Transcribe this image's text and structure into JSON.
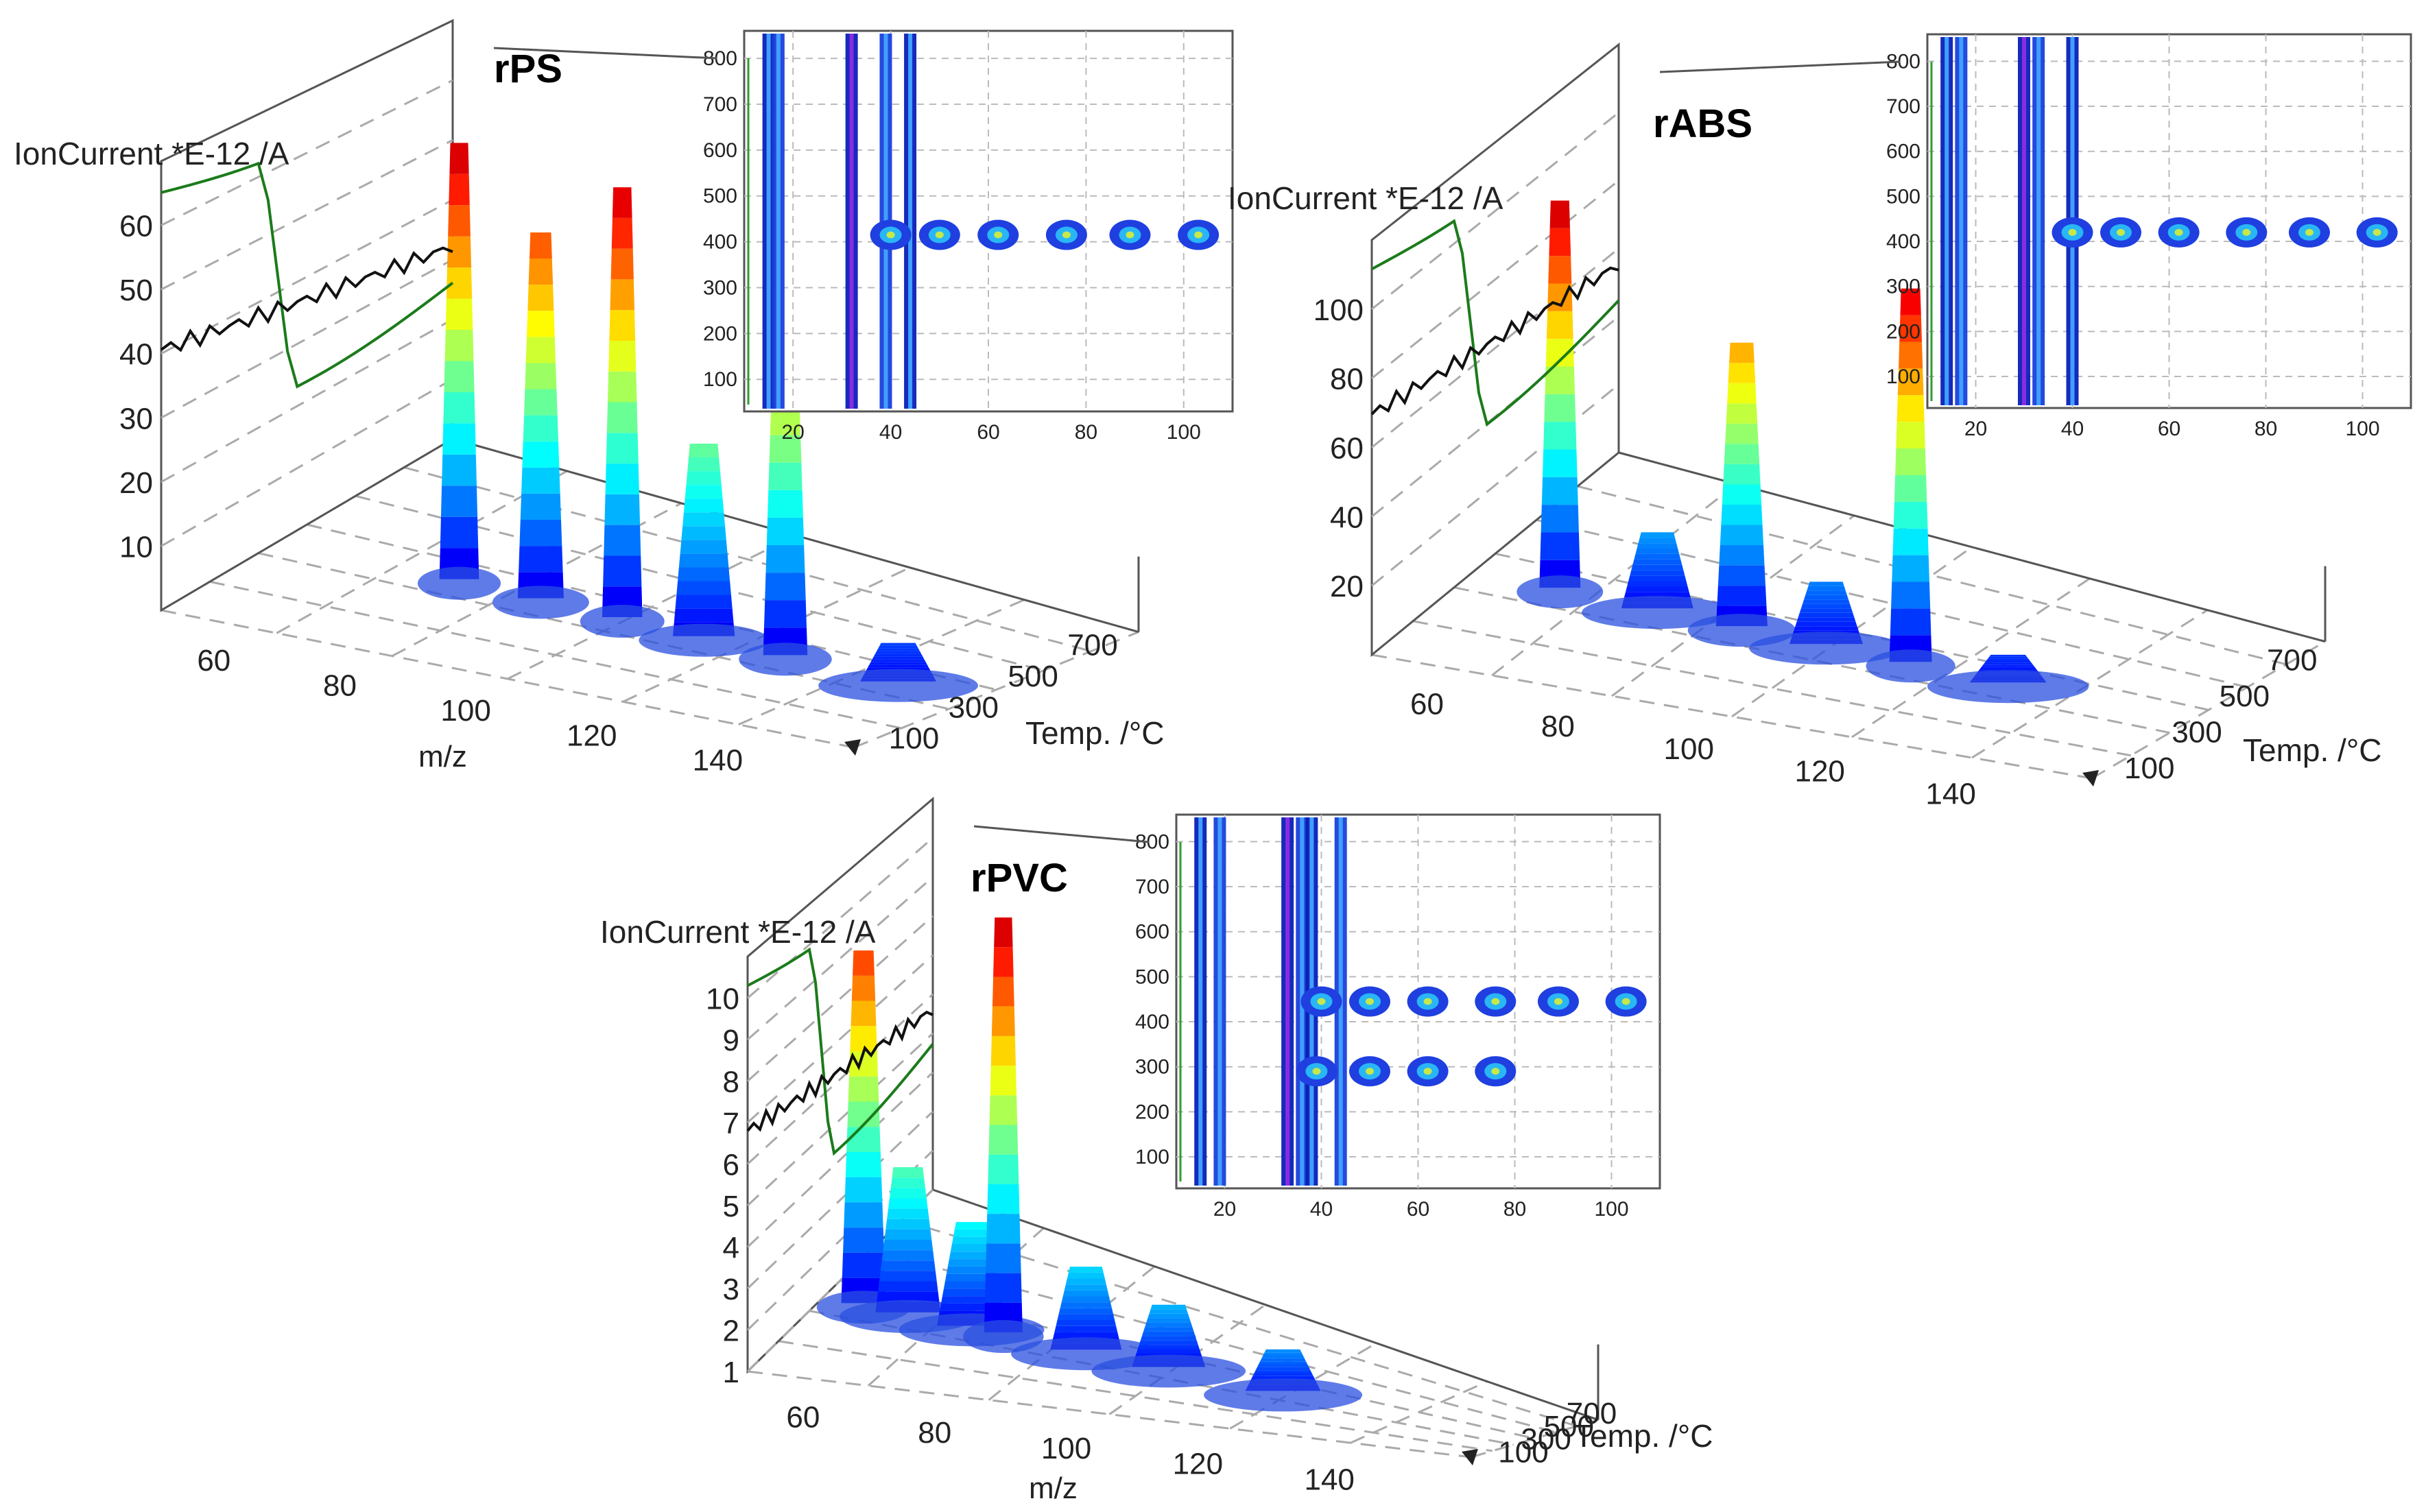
{
  "chart_data": [
    {
      "type": "surface3d",
      "title": "rPS",
      "zlabel": "IonCurrent *E-12 /A",
      "xlabel": "m/z",
      "ylabel": "Temp. /°C",
      "x_ticks": [
        "60",
        "80",
        "100",
        "120",
        "140"
      ],
      "y_ticks": [
        "100",
        "300",
        "500",
        "700"
      ],
      "z_ticks": [
        "10",
        "20",
        "30",
        "40",
        "50",
        "60"
      ],
      "xlim": [
        50,
        160
      ],
      "zlim": [
        0,
        70
      ],
      "peaks": [
        {
          "mz": 78,
          "height": 68
        },
        {
          "mz": 91,
          "height": 57
        },
        {
          "mz": 104,
          "height": 67
        },
        {
          "mz": 117,
          "height": 30
        },
        {
          "mz": 130,
          "height": 60
        },
        {
          "mz": 148,
          "height": 6
        }
      ],
      "inset": {
        "type": "heatmap",
        "x_ticks": [
          "20",
          "40",
          "60",
          "80",
          "100"
        ],
        "y_ticks": [
          "100",
          "200",
          "300",
          "400",
          "500",
          "600",
          "700",
          "800"
        ],
        "xlim": [
          10,
          110
        ],
        "ylim": [
          30,
          860
        ],
        "vertical_bands": [
          15,
          17,
          32,
          39,
          44
        ],
        "blobs_at_temp": 415,
        "blob_mz": [
          40,
          50,
          62,
          76,
          89,
          103
        ]
      }
    },
    {
      "type": "surface3d",
      "title": "rABS",
      "zlabel": "IonCurrent *E-12 /A",
      "xlabel": "m/z",
      "ylabel": "Temp. /°C",
      "x_ticks": [
        "60",
        "80",
        "100",
        "120",
        "140"
      ],
      "y_ticks": [
        "100",
        "300",
        "500",
        "700"
      ],
      "z_ticks": [
        "20",
        "40",
        "60",
        "80",
        "100"
      ],
      "xlim": [
        50,
        160
      ],
      "zlim": [
        0,
        120
      ],
      "peaks": [
        {
          "mz": 63,
          "height": 112
        },
        {
          "mz": 78,
          "height": 22
        },
        {
          "mz": 91,
          "height": 82
        },
        {
          "mz": 104,
          "height": 18
        },
        {
          "mz": 117,
          "height": 108
        },
        {
          "mz": 132,
          "height": 8
        }
      ],
      "inset": {
        "type": "heatmap",
        "x_ticks": [
          "20",
          "40",
          "60",
          "80",
          "100"
        ],
        "y_ticks": [
          "100",
          "200",
          "300",
          "400",
          "500",
          "600",
          "700",
          "800"
        ],
        "xlim": [
          10,
          110
        ],
        "ylim": [
          30,
          860
        ],
        "vertical_bands": [
          14,
          17,
          30,
          33,
          40
        ],
        "blobs_at_temp": 420,
        "blob_mz": [
          40,
          50,
          62,
          76,
          89,
          103
        ]
      }
    },
    {
      "type": "surface3d",
      "title": "rPVC",
      "zlabel": "IonCurrent *E-12 /A",
      "xlabel": "m/z",
      "ylabel": "Temp. /°C",
      "x_ticks": [
        "60",
        "80",
        "100",
        "120",
        "140"
      ],
      "y_ticks": [
        "100",
        "300",
        "500",
        "700"
      ],
      "z_ticks": [
        "1",
        "2",
        "3",
        "4",
        "5",
        "6",
        "7",
        "8",
        "9",
        "10"
      ],
      "xlim": [
        50,
        160
      ],
      "zlim": [
        1,
        11
      ],
      "peaks": [
        {
          "mz": 56,
          "height": 9.5
        },
        {
          "mz": 63,
          "height": 4.5
        },
        {
          "mz": 73,
          "height": 3.5
        },
        {
          "mz": 78,
          "height": 11
        },
        {
          "mz": 91,
          "height": 3
        },
        {
          "mz": 104,
          "height": 2.5
        },
        {
          "mz": 122,
          "height": 2
        }
      ],
      "inset": {
        "type": "heatmap",
        "x_ticks": [
          "20",
          "40",
          "60",
          "80",
          "100"
        ],
        "y_ticks": [
          "100",
          "200",
          "300",
          "400",
          "500",
          "600",
          "700",
          "800"
        ],
        "xlim": [
          10,
          110
        ],
        "ylim": [
          30,
          860
        ],
        "vertical_bands": [
          15,
          19,
          33,
          36,
          38,
          44
        ],
        "blobs_at_temp": 445,
        "blobs_at_temp_2": 290,
        "blob_mz": [
          40,
          50,
          62,
          76,
          89,
          103
        ],
        "blob_mz_2": [
          39,
          50,
          62,
          76
        ]
      }
    }
  ]
}
